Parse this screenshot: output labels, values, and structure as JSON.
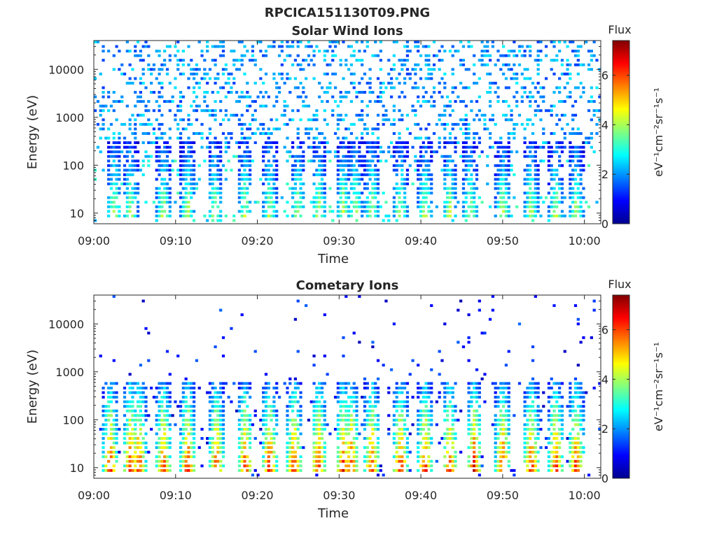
{
  "figure": {
    "title": "RPCICA151130T09.PNG"
  },
  "colors": {
    "scale": [
      "#00008f",
      "#0000ff",
      "#0080ff",
      "#00ffff",
      "#80ff80",
      "#ffff00",
      "#ff8000",
      "#ff0000",
      "#800000"
    ]
  },
  "chart_data": [
    {
      "type": "heatmap",
      "title": "Solar Wind Ions",
      "xlabel": "Time",
      "ylabel": "Energy (eV)",
      "xlim": [
        "09:00",
        "10:02"
      ],
      "ylim": [
        6,
        40000
      ],
      "yscale": "log",
      "xticks": [
        "09:00",
        "09:10",
        "09:20",
        "09:30",
        "09:40",
        "09:50",
        "10:00"
      ],
      "yticks": [
        10,
        100,
        1000,
        10000
      ],
      "ytick_labels": [
        "10",
        "100",
        "1000",
        "10000"
      ],
      "colorbar": {
        "title": "Flux",
        "label": "eV⁻¹cm⁻²sr⁻¹s⁻¹",
        "range": [
          0,
          7.4
        ],
        "ticks": [
          0,
          2,
          4,
          6
        ],
        "tick_labels": [
          "0",
          "2",
          "4",
          "6"
        ]
      },
      "features": {
        "background_flux": 2.0,
        "low_energy_bursts_minutes": [
          2.5,
          4.5,
          8.5,
          11.5,
          14.8,
          18.5,
          21.5,
          25.0,
          27.5,
          30.5,
          32.0,
          34.0,
          37.5,
          40.5,
          43.5,
          46.0,
          50.0,
          53.5,
          56.5,
          59.0
        ],
        "burst_energy_range": [
          10,
          300
        ],
        "burst_peak_flux": 4.2,
        "peak_flux": 4.5
      }
    },
    {
      "type": "heatmap",
      "title": "Cometary Ions",
      "xlabel": "Time",
      "ylabel": "Energy (eV)",
      "xlim": [
        "09:00",
        "10:02"
      ],
      "ylim": [
        6,
        40000
      ],
      "yscale": "log",
      "xticks": [
        "09:00",
        "09:10",
        "09:20",
        "09:30",
        "09:40",
        "09:50",
        "10:00"
      ],
      "yticks": [
        10,
        100,
        1000,
        10000
      ],
      "ytick_labels": [
        "10",
        "100",
        "1000",
        "10000"
      ],
      "colorbar": {
        "title": "Flux",
        "label": "eV⁻¹cm⁻²sr⁻¹s⁻¹",
        "range": [
          0,
          7.4
        ],
        "ticks": [
          0,
          2,
          4,
          6
        ],
        "tick_labels": [
          "0",
          "2",
          "4",
          "6"
        ]
      },
      "features": {
        "background_flux": 1.0,
        "low_energy_bursts_minutes": [
          2.0,
          4.5,
          5.5,
          8.5,
          11.5,
          15.0,
          18.5,
          21.5,
          24.5,
          27.5,
          30.5,
          31.5,
          34.0,
          37.5,
          40.5,
          43.5,
          46.5,
          50.0,
          53.5,
          56.5,
          59.0
        ],
        "burst_energy_range": [
          10,
          600
        ],
        "burst_peak_flux": 6.5,
        "peak_flux": 6.8
      }
    }
  ]
}
